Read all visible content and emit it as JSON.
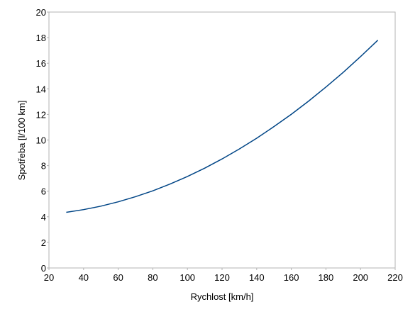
{
  "chart_data": {
    "type": "line",
    "x_label": "Rychlost [km/h]",
    "y_label": "Spotřeba [l/100 km]",
    "x": [
      30,
      40,
      50,
      60,
      70,
      80,
      90,
      100,
      110,
      120,
      130,
      140,
      150,
      160,
      170,
      180,
      190,
      200,
      210
    ],
    "series": [
      {
        "color": "#004586",
        "values": [
          4.35,
          4.56,
          4.83,
          5.17,
          5.57,
          6.03,
          6.56,
          7.15,
          7.8,
          8.52,
          9.3,
          10.14,
          11.05,
          12.01,
          13.04,
          14.14,
          15.29,
          16.52,
          17.8
        ]
      }
    ],
    "xlim": [
      20,
      220
    ],
    "xticks": [
      20,
      40,
      60,
      80,
      100,
      120,
      140,
      160,
      180,
      200,
      220
    ],
    "ylim": [
      0,
      20
    ],
    "yticks": [
      0,
      2,
      4,
      6,
      8,
      10,
      12,
      14,
      16,
      18,
      20
    ],
    "grid": false
  }
}
